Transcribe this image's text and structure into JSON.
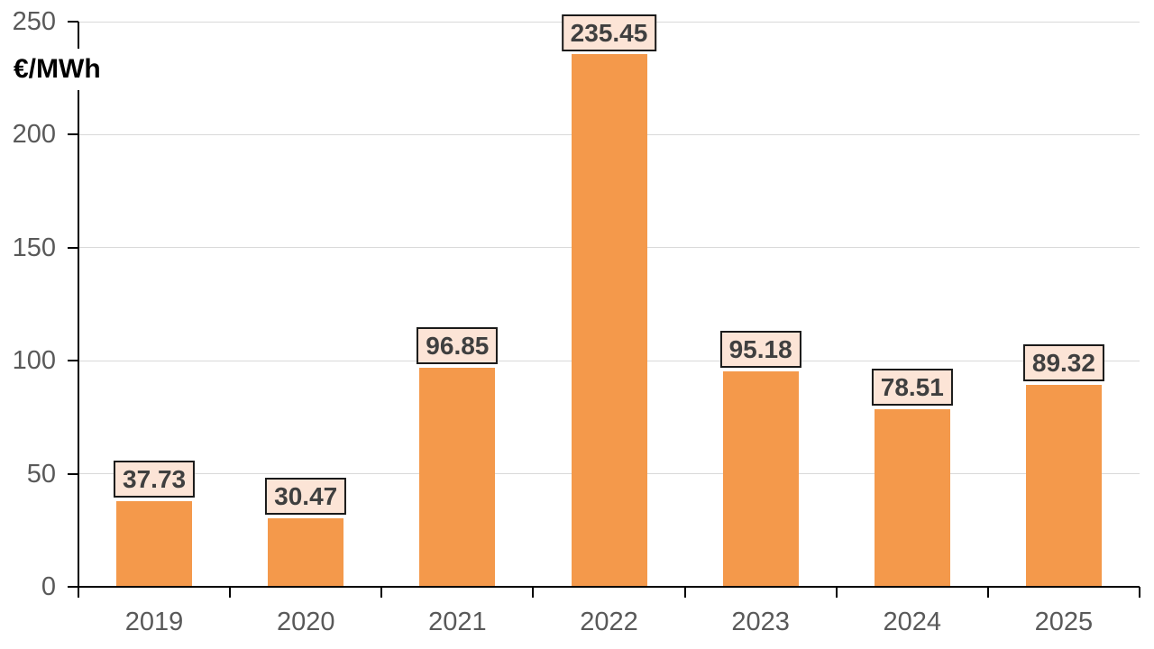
{
  "chart_data": {
    "type": "bar",
    "title": "",
    "ylabel": "€/MWh",
    "xlabel": "",
    "categories": [
      "2019",
      "2020",
      "2021",
      "2022",
      "2023",
      "2024",
      "2025"
    ],
    "values": [
      37.73,
      30.47,
      96.85,
      235.45,
      95.18,
      78.51,
      89.32
    ],
    "data_labels": [
      "37.73",
      "30.47",
      "96.85",
      "235.45",
      "95.18",
      "78.51",
      "89.32"
    ],
    "y_ticks": [
      0,
      50,
      100,
      150,
      200,
      250
    ],
    "ylim": [
      0,
      250
    ],
    "grid": true,
    "legend": "none",
    "colors": {
      "bar": "#f4994b",
      "label_box_fill": "#fce4d6",
      "label_box_border": "#1a1a1a",
      "label_text": "#3f3f3f",
      "axis_text": "#595959",
      "gridline": "#d9d9d9",
      "axis_line": "#000000",
      "background": "#ffffff"
    }
  }
}
